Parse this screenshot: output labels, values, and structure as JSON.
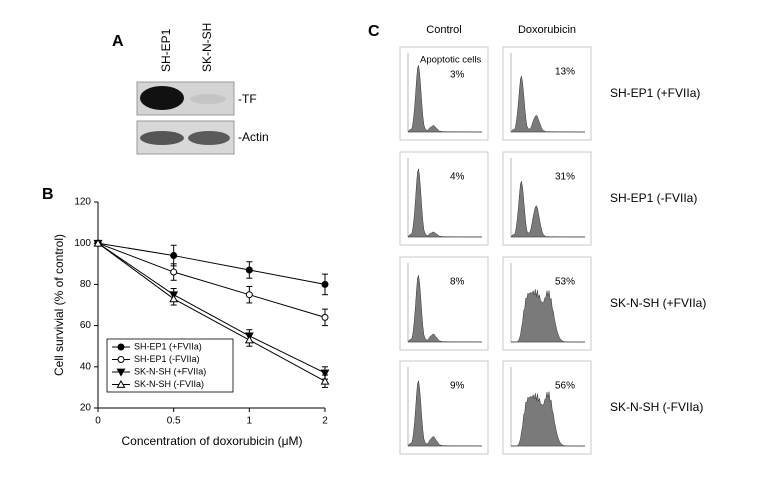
{
  "panel_a": {
    "label": "A",
    "lanes": [
      "SH-EP1",
      "SK-N-SH"
    ],
    "bands": [
      "-TF",
      "-Actin"
    ]
  },
  "chart_data": {
    "type": "line",
    "panel_label": "B",
    "x_label": "Concentration of doxorubicin (μM)",
    "y_label": "Cell survivial (% of control)",
    "categories": [
      "0",
      "0.5",
      "1",
      "2"
    ],
    "ylim": [
      20,
      120
    ],
    "yticks": [
      20,
      40,
      60,
      80,
      100,
      120
    ],
    "series": [
      {
        "name": "SH-EP1 (+FVIIa)",
        "color": "#000000",
        "marker": "filled-circle",
        "values": [
          100,
          94,
          87,
          80
        ],
        "errors": [
          0,
          5,
          4,
          5
        ]
      },
      {
        "name": "SH-EP1 (-FVIIa)",
        "color": "#000000",
        "marker": "open-circle",
        "values": [
          100,
          86,
          75,
          64
        ],
        "errors": [
          0,
          4,
          4,
          4
        ]
      },
      {
        "name": "SK-N-SH (+FVIIa)",
        "color": "#000000",
        "marker": "filled-triangle-down",
        "values": [
          100,
          75,
          55,
          37
        ],
        "errors": [
          0,
          3,
          3,
          3
        ]
      },
      {
        "name": "SK-N-SH (-FVIIa)",
        "color": "#000000",
        "marker": "open-triangle-up",
        "values": [
          100,
          73,
          53,
          33
        ],
        "errors": [
          0,
          3,
          3,
          3
        ]
      }
    ]
  },
  "panel_c": {
    "label": "C",
    "columns": [
      "Control",
      "Doxorubicin"
    ],
    "note": "Apoptotic cells",
    "rows": [
      {
        "label": "SH-EP1 (+FVIIa)",
        "values": [
          "3%",
          "13%"
        ]
      },
      {
        "label": "SH-EP1 (-FVIIa)",
        "values": [
          "4%",
          "31%"
        ]
      },
      {
        "label": "SK-N-SH (+FVIIa)",
        "values": [
          "8%",
          "53%"
        ]
      },
      {
        "label": "SK-N-SH (-FVIIa)",
        "values": [
          "9%",
          "56%"
        ]
      }
    ]
  }
}
